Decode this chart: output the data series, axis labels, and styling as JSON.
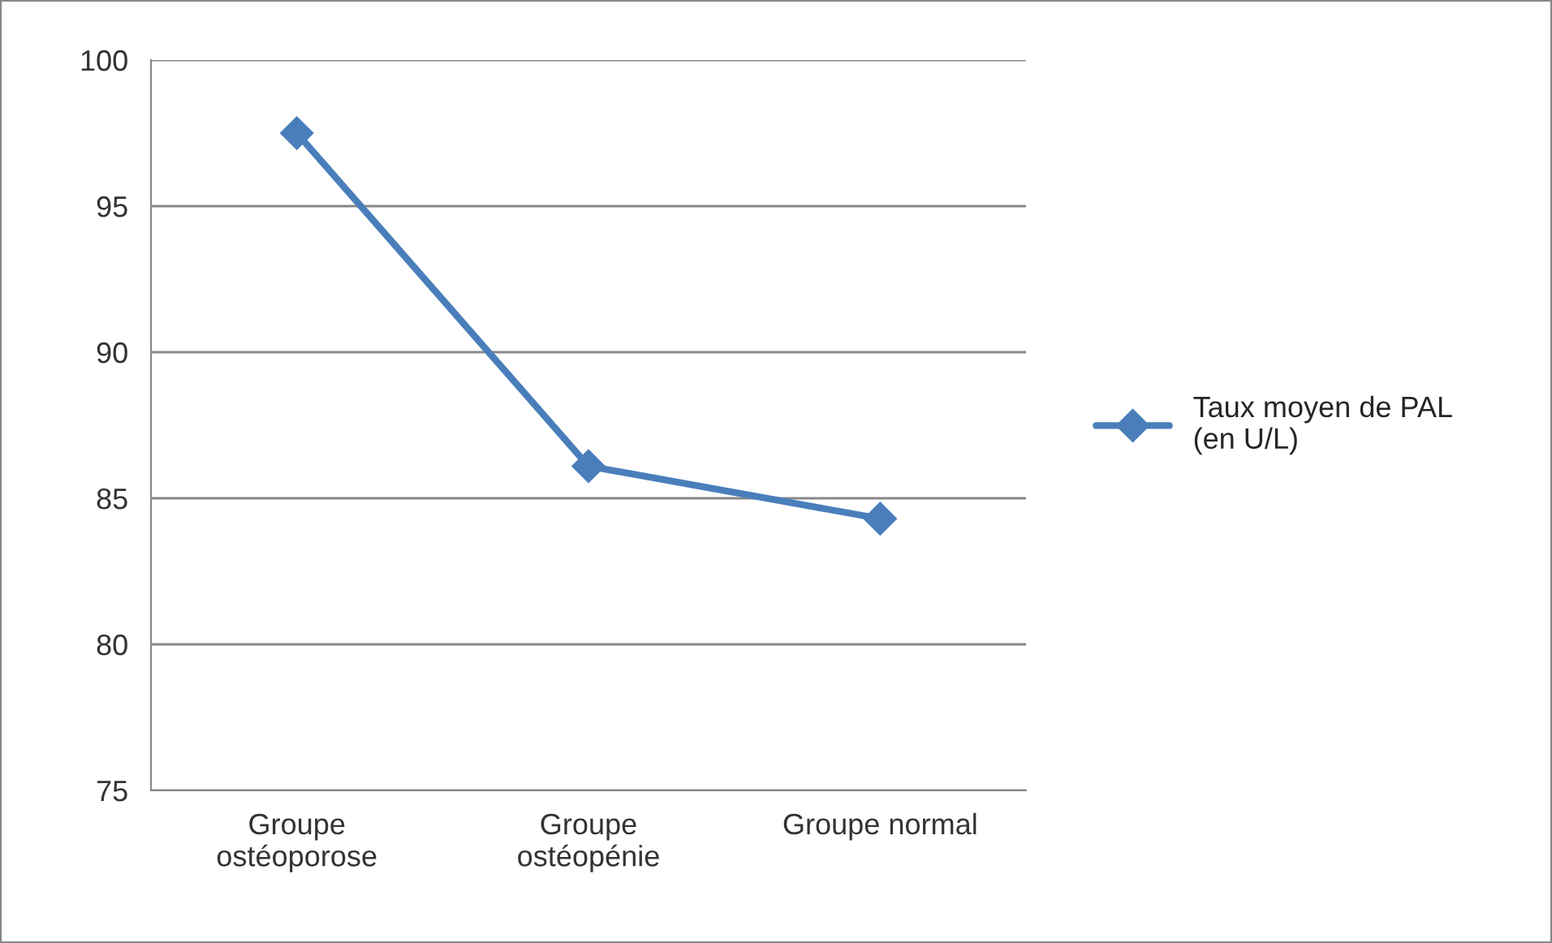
{
  "chart_data": {
    "type": "line",
    "categories": [
      "Groupe\nostéoporose",
      "Groupe\nostéopénie",
      "Groupe normal"
    ],
    "series": [
      {
        "name": "Taux moyen de PAL\n(en U/L)",
        "color": "#4a7ebb",
        "values": [
          97.5,
          86.1,
          84.3
        ]
      }
    ],
    "ylim": [
      75,
      100
    ],
    "yticks": [
      75,
      80,
      85,
      90,
      95,
      100
    ],
    "grid": "y",
    "legend": "right",
    "marker": "diamond",
    "line_style": "solid"
  }
}
